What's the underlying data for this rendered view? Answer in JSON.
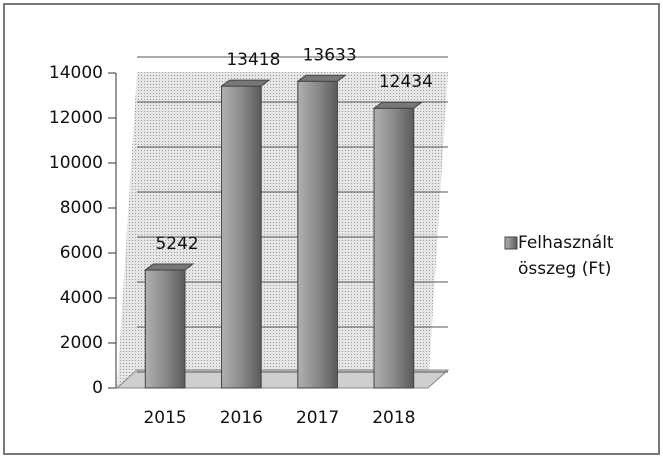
{
  "chart_data": {
    "type": "bar",
    "categories": [
      "2015",
      "2016",
      "2017",
      "2018"
    ],
    "series": [
      {
        "name": "Felhasznált összeg (Ft)",
        "color": "#8a8a8a",
        "values": [
          5242,
          13418,
          13633,
          12434
        ]
      }
    ],
    "ylim": [
      0,
      14000
    ],
    "yticks": [
      0,
      2000,
      4000,
      6000,
      8000,
      10000,
      12000,
      14000
    ],
    "grid": true,
    "legend": "right",
    "data_labels": true
  }
}
